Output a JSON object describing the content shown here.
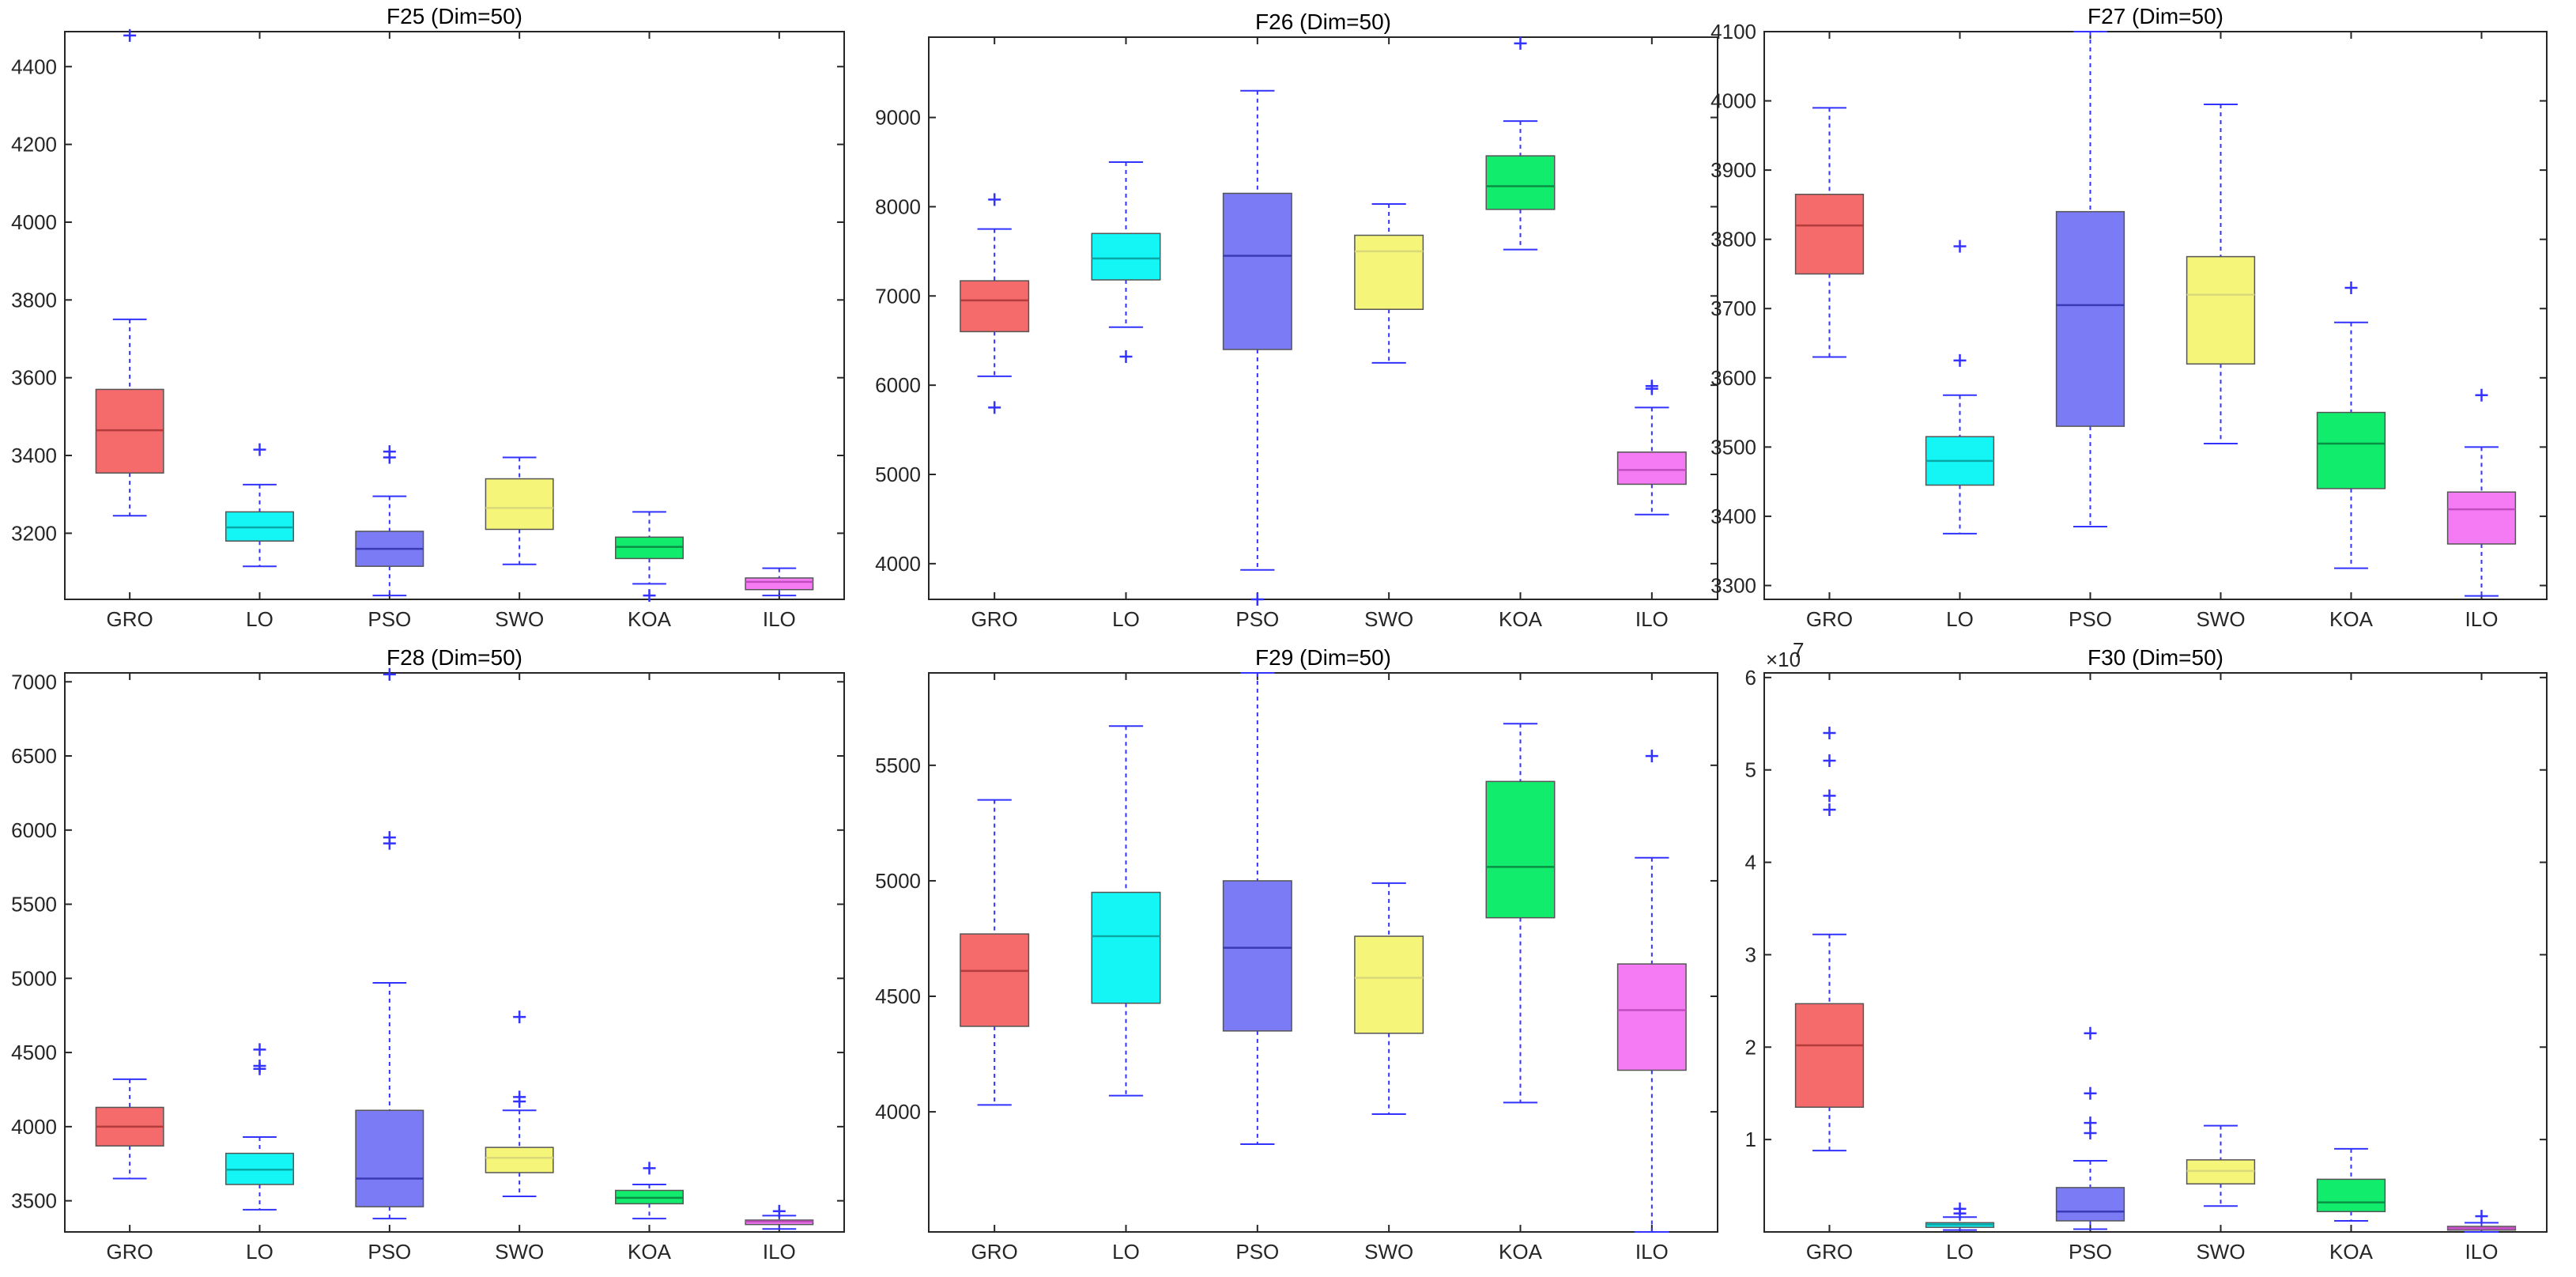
{
  "chart_data": [
    {
      "type": "boxplot",
      "title": "F25 (Dim=50)",
      "categories": [
        "GRO",
        "LO",
        "PSO",
        "SWO",
        "KOA",
        "ILO"
      ],
      "ylim": [
        3030,
        4490
      ],
      "yticks": [
        3200,
        3400,
        3600,
        3800,
        4000,
        4200,
        4400
      ],
      "ytick_labels": [
        "3200",
        "3400",
        "3600",
        "3800",
        "4000",
        "4200",
        "4400"
      ],
      "exponent_label": "",
      "boxes": [
        {
          "name": "GRO",
          "min": 3245,
          "q1": 3355,
          "median": 3465,
          "q3": 3570,
          "max": 3750,
          "outliers": [
            4480
          ]
        },
        {
          "name": "LO",
          "min": 3115,
          "q1": 3180,
          "median": 3215,
          "q3": 3255,
          "max": 3325,
          "outliers": [
            3415
          ]
        },
        {
          "name": "PSO",
          "min": 3040,
          "q1": 3115,
          "median": 3160,
          "q3": 3205,
          "max": 3295,
          "outliers": [
            3395,
            3410
          ]
        },
        {
          "name": "SWO",
          "min": 3120,
          "q1": 3210,
          "median": 3265,
          "q3": 3340,
          "max": 3395,
          "outliers": []
        },
        {
          "name": "KOA",
          "min": 3070,
          "q1": 3135,
          "median": 3165,
          "q3": 3190,
          "max": 3255,
          "outliers": [
            3040
          ]
        },
        {
          "name": "ILO",
          "min": 3040,
          "q1": 3055,
          "median": 3075,
          "q3": 3085,
          "max": 3110,
          "outliers": []
        }
      ]
    },
    {
      "type": "boxplot",
      "title": "F26 (Dim=50)",
      "categories": [
        "GRO",
        "LO",
        "PSO",
        "SWO",
        "KOA",
        "ILO"
      ],
      "ylim": [
        3600,
        9900
      ],
      "yticks": [
        4000,
        5000,
        6000,
        7000,
        8000,
        9000
      ],
      "ytick_labels": [
        "4000",
        "5000",
        "6000",
        "7000",
        "8000",
        "9000"
      ],
      "exponent_label": "",
      "boxes": [
        {
          "name": "GRO",
          "min": 6100,
          "q1": 6600,
          "median": 6950,
          "q3": 7170,
          "max": 7750,
          "outliers": [
            5750,
            8080
          ]
        },
        {
          "name": "LO",
          "min": 6650,
          "q1": 7180,
          "median": 7420,
          "q3": 7700,
          "max": 8500,
          "outliers": [
            6320
          ]
        },
        {
          "name": "PSO",
          "min": 3930,
          "q1": 6400,
          "median": 7450,
          "q3": 8150,
          "max": 9300,
          "outliers": [
            3600
          ]
        },
        {
          "name": "SWO",
          "min": 6250,
          "q1": 6850,
          "median": 7500,
          "q3": 7680,
          "max": 8030,
          "outliers": []
        },
        {
          "name": "KOA",
          "min": 7520,
          "q1": 7970,
          "median": 8230,
          "q3": 8570,
          "max": 8960,
          "outliers": [
            9830
          ]
        },
        {
          "name": "ILO",
          "min": 4550,
          "q1": 4890,
          "median": 5050,
          "q3": 5250,
          "max": 5750,
          "outliers": [
            5960,
            5990
          ]
        }
      ]
    },
    {
      "type": "boxplot",
      "title": "F27 (Dim=50)",
      "categories": [
        "GRO",
        "LO",
        "PSO",
        "SWO",
        "KOA",
        "ILO"
      ],
      "ylim": [
        3280,
        4100
      ],
      "yticks": [
        3300,
        3400,
        3500,
        3600,
        3700,
        3800,
        3900,
        4000,
        4100
      ],
      "ytick_labels": [
        "3300",
        "3400",
        "3500",
        "3600",
        "3700",
        "3800",
        "3900",
        "4000",
        "4100"
      ],
      "exponent_label": "",
      "boxes": [
        {
          "name": "GRO",
          "min": 3630,
          "q1": 3750,
          "median": 3820,
          "q3": 3865,
          "max": 3990,
          "outliers": []
        },
        {
          "name": "LO",
          "min": 3375,
          "q1": 3445,
          "median": 3480,
          "q3": 3515,
          "max": 3575,
          "outliers": [
            3625,
            3790
          ]
        },
        {
          "name": "PSO",
          "min": 3385,
          "q1": 3530,
          "median": 3705,
          "q3": 3840,
          "max": 4100,
          "outliers": []
        },
        {
          "name": "SWO",
          "min": 3505,
          "q1": 3620,
          "median": 3720,
          "q3": 3775,
          "max": 3995,
          "outliers": []
        },
        {
          "name": "KOA",
          "min": 3325,
          "q1": 3440,
          "median": 3505,
          "q3": 3550,
          "max": 3680,
          "outliers": [
            3730
          ]
        },
        {
          "name": "ILO",
          "min": 3285,
          "q1": 3360,
          "median": 3410,
          "q3": 3435,
          "max": 3500,
          "outliers": [
            3575
          ]
        }
      ]
    },
    {
      "type": "boxplot",
      "title": "F28 (Dim=50)",
      "categories": [
        "GRO",
        "LO",
        "PSO",
        "SWO",
        "KOA",
        "ILO"
      ],
      "ylim": [
        3290,
        7060
      ],
      "yticks": [
        3500,
        4000,
        4500,
        5000,
        5500,
        6000,
        6500,
        7000
      ],
      "ytick_labels": [
        "3500",
        "4000",
        "4500",
        "5000",
        "5500",
        "6000",
        "6500",
        "7000"
      ],
      "exponent_label": "",
      "boxes": [
        {
          "name": "GRO",
          "min": 3650,
          "q1": 3870,
          "median": 4000,
          "q3": 4130,
          "max": 4320,
          "outliers": []
        },
        {
          "name": "LO",
          "min": 3440,
          "q1": 3610,
          "median": 3710,
          "q3": 3820,
          "max": 3930,
          "outliers": [
            4390,
            4410,
            4520
          ]
        },
        {
          "name": "PSO",
          "min": 3380,
          "q1": 3460,
          "median": 3650,
          "q3": 4110,
          "max": 4970,
          "outliers": [
            5910,
            5950,
            7050
          ]
        },
        {
          "name": "SWO",
          "min": 3530,
          "q1": 3690,
          "median": 3790,
          "q3": 3860,
          "max": 4110,
          "outliers": [
            4170,
            4200,
            4740
          ]
        },
        {
          "name": "KOA",
          "min": 3380,
          "q1": 3480,
          "median": 3520,
          "q3": 3570,
          "max": 3610,
          "outliers": [
            3720
          ]
        },
        {
          "name": "ILO",
          "min": 3310,
          "q1": 3340,
          "median": 3360,
          "q3": 3370,
          "max": 3400,
          "outliers": [
            3430
          ]
        }
      ]
    },
    {
      "type": "boxplot",
      "title": "F29 (Dim=50)",
      "categories": [
        "GRO",
        "LO",
        "PSO",
        "SWO",
        "KOA",
        "ILO"
      ],
      "ylim": [
        3480,
        5900
      ],
      "yticks": [
        4000,
        4500,
        5000,
        5500
      ],
      "ytick_labels": [
        "4000",
        "4500",
        "5000",
        "5500"
      ],
      "exponent_label": "",
      "boxes": [
        {
          "name": "GRO",
          "min": 4030,
          "q1": 4370,
          "median": 4610,
          "q3": 4770,
          "max": 5350,
          "outliers": []
        },
        {
          "name": "LO",
          "min": 4070,
          "q1": 4470,
          "median": 4760,
          "q3": 4950,
          "max": 5670,
          "outliers": []
        },
        {
          "name": "PSO",
          "min": 3860,
          "q1": 4350,
          "median": 4710,
          "q3": 5000,
          "max": 5900,
          "outliers": []
        },
        {
          "name": "SWO",
          "min": 3990,
          "q1": 4340,
          "median": 4580,
          "q3": 4760,
          "max": 4990,
          "outliers": []
        },
        {
          "name": "KOA",
          "min": 4040,
          "q1": 4840,
          "median": 5060,
          "q3": 5430,
          "max": 5680,
          "outliers": []
        },
        {
          "name": "ILO",
          "min": 3480,
          "q1": 4180,
          "median": 4440,
          "q3": 4640,
          "max": 5100,
          "outliers": [
            5540
          ]
        }
      ]
    },
    {
      "type": "boxplot",
      "title": "F30 (Dim=50)",
      "categories": [
        "GRO",
        "LO",
        "PSO",
        "SWO",
        "KOA",
        "ILO"
      ],
      "ylim": [
        0,
        6.05
      ],
      "yticks": [
        1,
        2,
        3,
        4,
        5,
        6
      ],
      "ytick_labels": [
        "1",
        "2",
        "3",
        "4",
        "5",
        "6"
      ],
      "exponent_label": "×10",
      "exponent_power": "7",
      "boxes": [
        {
          "name": "GRO",
          "min": 0.88,
          "q1": 1.35,
          "median": 2.02,
          "q3": 2.47,
          "max": 3.22,
          "outliers": [
            4.57,
            4.72,
            5.1,
            5.4
          ]
        },
        {
          "name": "LO",
          "min": 0.02,
          "q1": 0.05,
          "median": 0.08,
          "q3": 0.1,
          "max": 0.16,
          "outliers": [
            0.2,
            0.25
          ]
        },
        {
          "name": "PSO",
          "min": 0.03,
          "q1": 0.12,
          "median": 0.22,
          "q3": 0.48,
          "max": 0.77,
          "outliers": [
            1.07,
            1.18,
            1.5,
            2.15
          ]
        },
        {
          "name": "SWO",
          "min": 0.28,
          "q1": 0.52,
          "median": 0.66,
          "q3": 0.78,
          "max": 1.15,
          "outliers": []
        },
        {
          "name": "KOA",
          "min": 0.12,
          "q1": 0.22,
          "median": 0.32,
          "q3": 0.57,
          "max": 0.9,
          "outliers": []
        },
        {
          "name": "ILO",
          "min": 0.0,
          "q1": 0.02,
          "median": 0.04,
          "q3": 0.06,
          "max": 0.1,
          "outliers": [
            0.17
          ]
        }
      ]
    }
  ],
  "colors": {
    "box_fills": [
      "#f56a6a",
      "#14f5f5",
      "#7b7bf5",
      "#f5f57a",
      "#12ec6c",
      "#f57bf5"
    ],
    "median_lines": [
      "#b33d3d",
      "#0aa7a7",
      "#3a3ab5",
      "#d9d97a",
      "#0a8f44",
      "#c04cc0"
    ],
    "whisker": "#3333ff",
    "axis": "#262626"
  }
}
